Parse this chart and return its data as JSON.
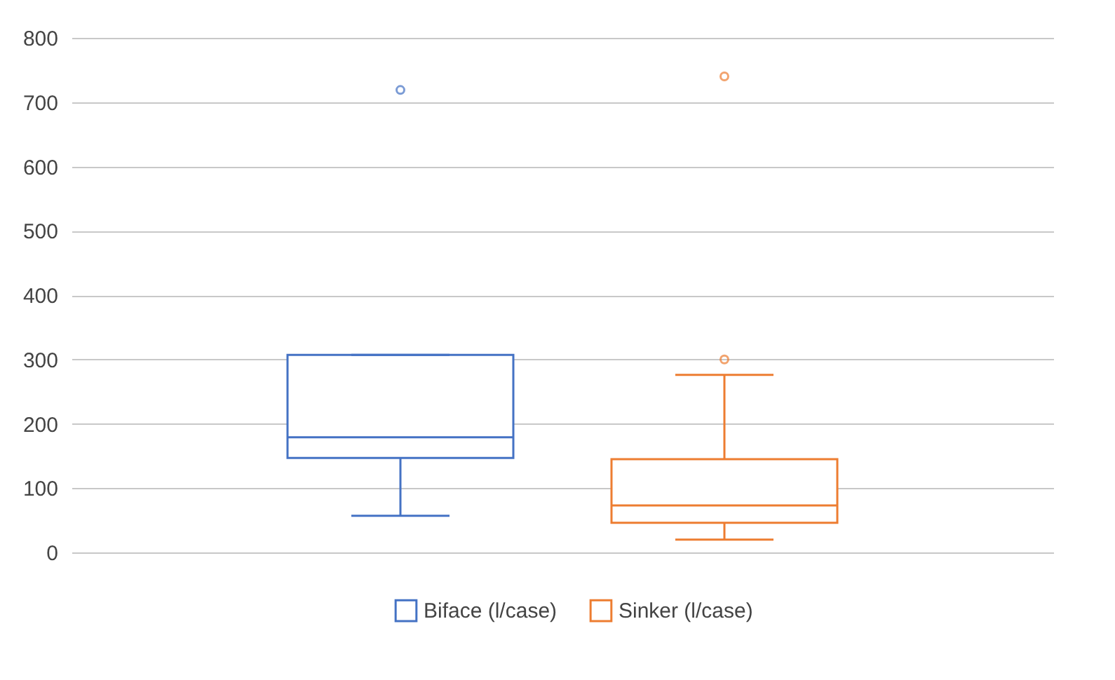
{
  "chart_data": {
    "type": "box",
    "categories": [
      null
    ],
    "series": [
      {
        "name": "Biface (l/case)",
        "color": "#4472c4",
        "boxes": [
          {
            "low": 57,
            "q1": 147,
            "median": 179,
            "q3": 307,
            "high": 307,
            "outliers": [
              719
            ]
          }
        ]
      },
      {
        "name": "Sinker (l/case)",
        "color": "#ed7d31",
        "boxes": [
          {
            "low": 20,
            "q1": 46,
            "median": 73,
            "q3": 145,
            "high": 276,
            "outliers": [
              300,
              740
            ]
          }
        ]
      }
    ],
    "ylim": [
      0,
      800
    ],
    "yticks": [
      0,
      100,
      200,
      300,
      400,
      500,
      600,
      700,
      800
    ],
    "grid": "y",
    "legend": "bottom"
  }
}
